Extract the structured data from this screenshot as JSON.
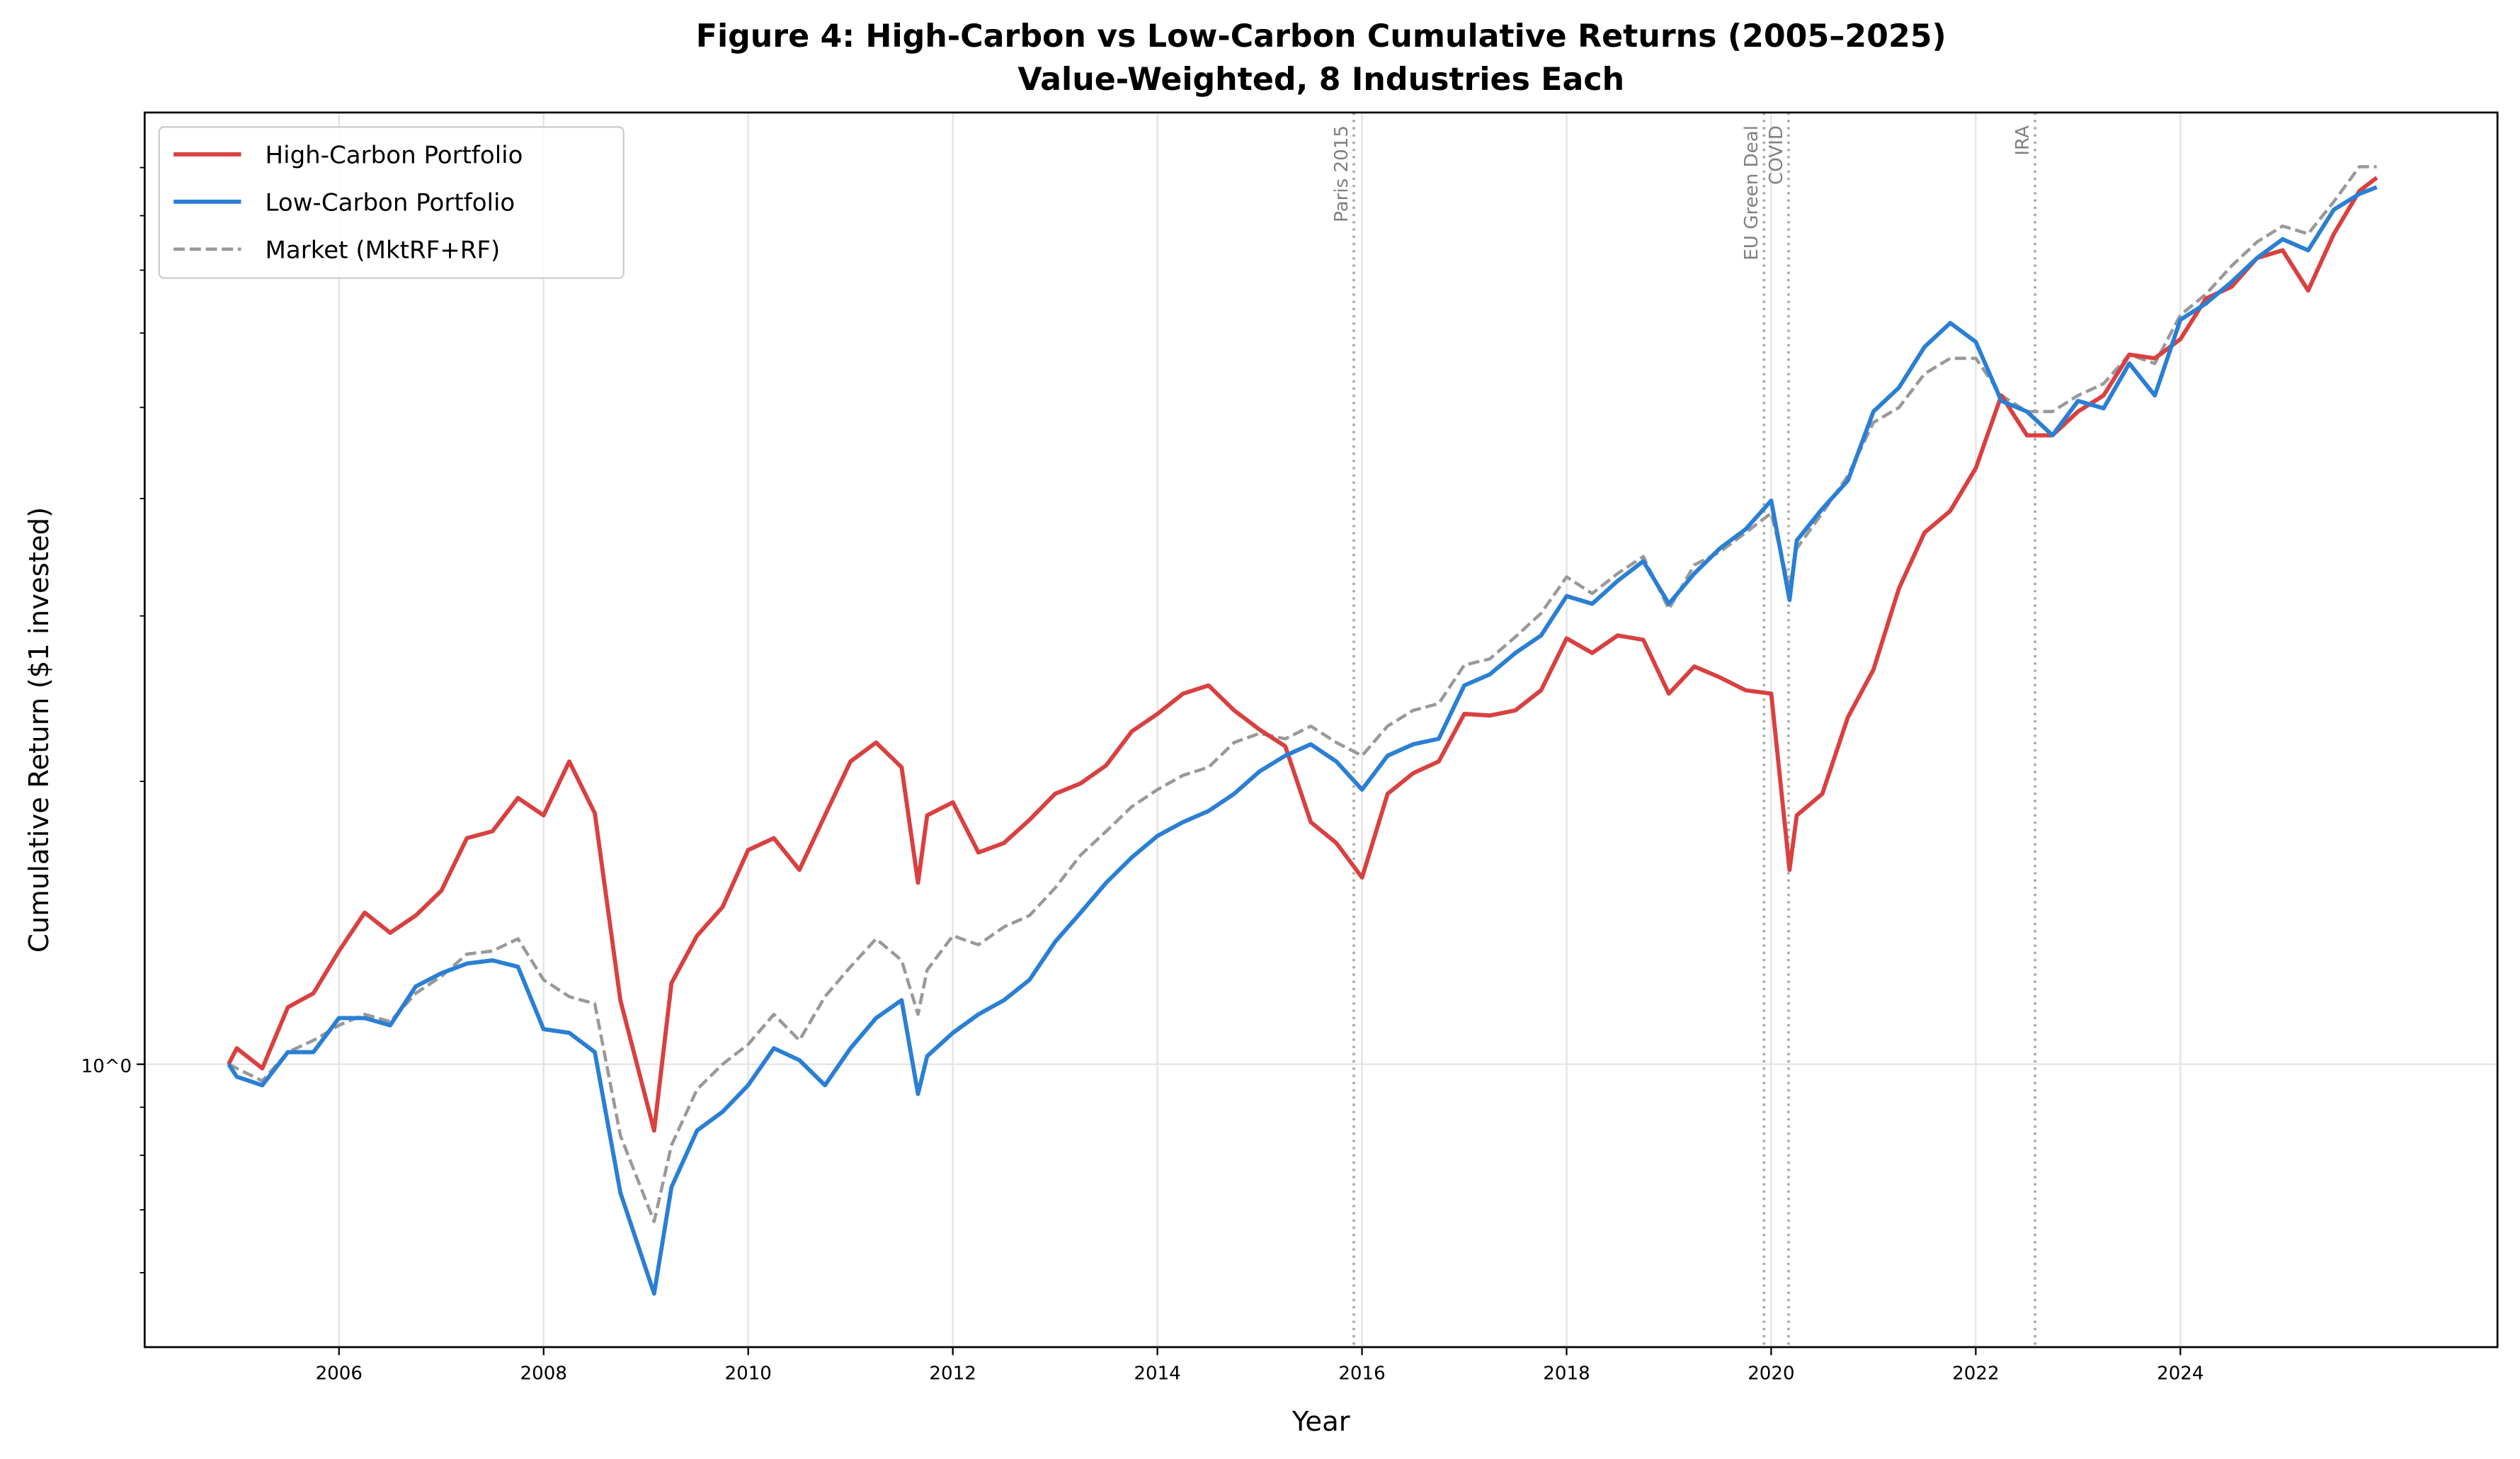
{
  "chart_data": {
    "type": "line",
    "title": "Figure 4: High-Carbon vs Low-Carbon Cumulative Returns (2005–2025)",
    "subtitle": "Value-Weighted, 8 Industries Each",
    "xlabel": "Year",
    "ylabel": "Cumulative Return ($1 invested)",
    "yscale": "log",
    "xlim": [
      2004.1,
      2027.1
    ],
    "ylim": [
      0.5,
      10.3
    ],
    "x_ticks": [
      2006,
      2008,
      2010,
      2012,
      2014,
      2016,
      2018,
      2020,
      2022,
      2024
    ],
    "x_tick_labels": [
      "2006",
      "2008",
      "2010",
      "2012",
      "2014",
      "2016",
      "2018",
      "2020",
      "2022",
      "2024"
    ],
    "y_ticks": [
      1
    ],
    "y_tick_labels": [
      "10^0"
    ],
    "y_minor_ticks": [
      0.6,
      0.7,
      0.8,
      0.9,
      2,
      3,
      4,
      5,
      6,
      7,
      8,
      9
    ],
    "grid": true,
    "legend_position": "top-left",
    "x": [
      2004.92,
      2005.0,
      2005.25,
      2005.5,
      2005.75,
      2006.0,
      2006.25,
      2006.5,
      2006.75,
      2007.0,
      2007.25,
      2007.5,
      2007.75,
      2008.0,
      2008.25,
      2008.5,
      2008.75,
      2009.08,
      2009.25,
      2009.5,
      2009.75,
      2010.0,
      2010.25,
      2010.5,
      2010.75,
      2011.0,
      2011.25,
      2011.5,
      2011.66,
      2011.75,
      2012.0,
      2012.25,
      2012.5,
      2012.75,
      2013.0,
      2013.25,
      2013.5,
      2013.75,
      2014.0,
      2014.25,
      2014.5,
      2014.75,
      2015.0,
      2015.25,
      2015.5,
      2015.75,
      2016.0,
      2016.25,
      2016.5,
      2016.75,
      2017.0,
      2017.25,
      2017.5,
      2017.75,
      2018.0,
      2018.25,
      2018.5,
      2018.75,
      2019.0,
      2019.25,
      2019.5,
      2019.75,
      2020.0,
      2020.18,
      2020.25,
      2020.5,
      2020.75,
      2021.0,
      2021.25,
      2021.5,
      2021.75,
      2022.0,
      2022.25,
      2022.5,
      2022.75,
      2023.0,
      2023.25,
      2023.5,
      2023.75,
      2024.0,
      2024.25,
      2024.5,
      2024.75,
      2025.0,
      2025.25,
      2025.5,
      2025.75,
      2025.92
    ],
    "series": [
      {
        "name": "High-Carbon Portfolio",
        "color": "#d94040",
        "style": "solid",
        "values": [
          1.0,
          1.04,
          0.99,
          1.15,
          1.19,
          1.32,
          1.45,
          1.38,
          1.44,
          1.53,
          1.74,
          1.77,
          1.92,
          1.84,
          2.1,
          1.85,
          1.17,
          0.85,
          1.22,
          1.37,
          1.47,
          1.69,
          1.74,
          1.61,
          1.84,
          2.1,
          2.2,
          2.07,
          1.56,
          1.84,
          1.9,
          1.68,
          1.72,
          1.82,
          1.94,
          1.99,
          2.08,
          2.26,
          2.36,
          2.48,
          2.53,
          2.38,
          2.27,
          2.18,
          1.81,
          1.72,
          1.58,
          1.94,
          2.04,
          2.1,
          2.36,
          2.35,
          2.38,
          2.5,
          2.84,
          2.74,
          2.86,
          2.83,
          2.48,
          2.65,
          2.58,
          2.5,
          2.48,
          1.61,
          1.84,
          1.94,
          2.34,
          2.63,
          3.21,
          3.68,
          3.88,
          4.31,
          5.15,
          4.67,
          4.67,
          4.95,
          5.15,
          5.69,
          5.64,
          5.91,
          6.53,
          6.72,
          7.21,
          7.35,
          6.66,
          7.65,
          8.5,
          8.78
        ]
      },
      {
        "name": "Low-Carbon Portfolio",
        "color": "#2a7fd4",
        "style": "solid",
        "values": [
          1.0,
          0.97,
          0.95,
          1.03,
          1.03,
          1.12,
          1.12,
          1.1,
          1.21,
          1.25,
          1.28,
          1.29,
          1.27,
          1.09,
          1.08,
          1.03,
          0.73,
          0.57,
          0.74,
          0.85,
          0.89,
          0.95,
          1.04,
          1.01,
          0.95,
          1.04,
          1.12,
          1.17,
          0.93,
          1.02,
          1.08,
          1.13,
          1.17,
          1.23,
          1.35,
          1.45,
          1.56,
          1.66,
          1.75,
          1.81,
          1.86,
          1.94,
          2.05,
          2.13,
          2.19,
          2.1,
          1.96,
          2.13,
          2.19,
          2.22,
          2.53,
          2.6,
          2.74,
          2.86,
          3.15,
          3.09,
          3.27,
          3.43,
          3.09,
          3.33,
          3.54,
          3.71,
          3.98,
          3.12,
          3.61,
          3.9,
          4.18,
          4.95,
          5.25,
          5.8,
          6.15,
          5.87,
          5.08,
          4.95,
          4.67,
          5.08,
          4.99,
          5.57,
          5.15,
          6.2,
          6.45,
          6.8,
          7.21,
          7.55,
          7.35,
          8.12,
          8.44,
          8.58
        ]
      },
      {
        "name": "Market (MktRF+RF)",
        "color": "#999999",
        "style": "dashed",
        "values": [
          1.0,
          0.99,
          0.96,
          1.03,
          1.06,
          1.1,
          1.13,
          1.11,
          1.19,
          1.24,
          1.31,
          1.32,
          1.36,
          1.23,
          1.18,
          1.16,
          0.84,
          0.68,
          0.82,
          0.94,
          1.0,
          1.05,
          1.13,
          1.06,
          1.18,
          1.27,
          1.36,
          1.29,
          1.13,
          1.26,
          1.37,
          1.34,
          1.4,
          1.44,
          1.54,
          1.67,
          1.77,
          1.88,
          1.96,
          2.03,
          2.07,
          2.2,
          2.25,
          2.22,
          2.29,
          2.2,
          2.13,
          2.29,
          2.38,
          2.42,
          2.66,
          2.7,
          2.85,
          3.02,
          3.3,
          3.17,
          3.33,
          3.47,
          3.05,
          3.4,
          3.51,
          3.68,
          3.86,
          3.21,
          3.54,
          3.86,
          4.23,
          4.82,
          5.0,
          5.43,
          5.64,
          5.64,
          5.15,
          4.95,
          4.95,
          5.15,
          5.3,
          5.69,
          5.57,
          6.27,
          6.6,
          7.07,
          7.5,
          7.8,
          7.65,
          8.28,
          9.02,
          9.02
        ]
      }
    ],
    "events": [
      {
        "label": "Paris 2015",
        "x": 2015.92
      },
      {
        "label": "EU Green Deal",
        "x": 2019.93
      },
      {
        "label": "COVID",
        "x": 2020.17
      },
      {
        "label": "IRA",
        "x": 2022.58
      }
    ]
  }
}
